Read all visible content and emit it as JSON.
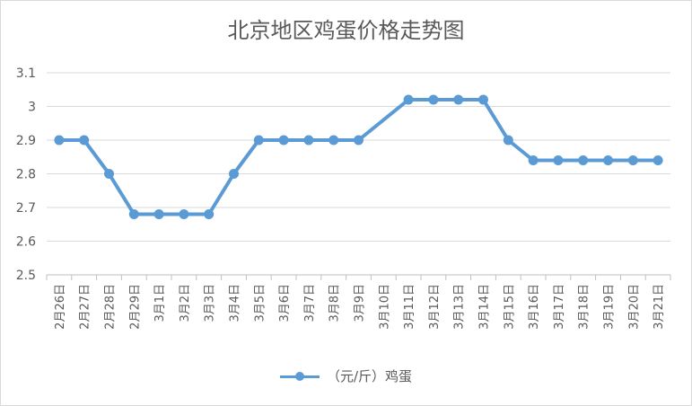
{
  "chart_data": {
    "type": "line",
    "title": "北京地区鸡蛋价格走势图",
    "xlabel": "",
    "ylabel": "",
    "ylim": [
      2.5,
      3.1
    ],
    "yticks": [
      "2.5",
      "2.6",
      "2.7",
      "2.8",
      "2.9",
      "3",
      "3.1"
    ],
    "grid": true,
    "legend_position": "bottom",
    "categories": [
      "2月26日",
      "2月27日",
      "2月28日",
      "2月29日",
      "3月1日",
      "3月2日",
      "3月3日",
      "3月4日",
      "3月5日",
      "3月6日",
      "3月7日",
      "3月8日",
      "3月9日",
      "3月10日",
      "3月11日",
      "3月12日",
      "3月13日",
      "3月14日",
      "3月15日",
      "3月16日",
      "3月17日",
      "3月18日",
      "3月19日",
      "3月20日",
      "3月21日"
    ],
    "series": [
      {
        "name": "（元/斤）鸡蛋",
        "color": "#5b9bd5",
        "values": [
          2.9,
          2.9,
          2.8,
          2.68,
          2.68,
          2.68,
          2.68,
          2.8,
          2.9,
          2.9,
          2.9,
          2.9,
          2.9,
          null,
          3.02,
          3.02,
          3.02,
          3.02,
          2.9,
          2.84,
          2.84,
          2.84,
          2.84,
          2.84,
          2.84
        ]
      }
    ]
  }
}
